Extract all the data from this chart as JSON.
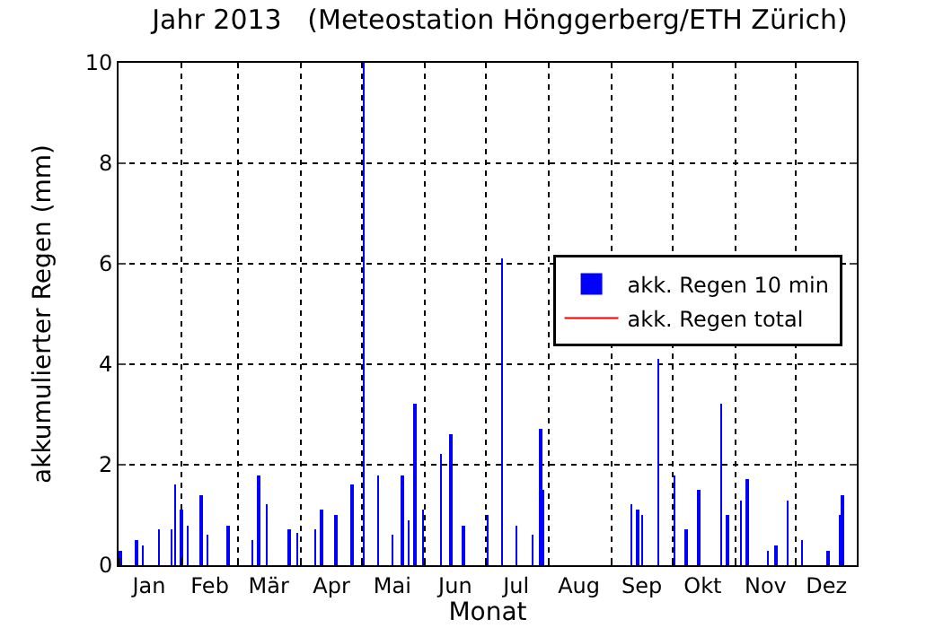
{
  "chart_data": {
    "type": "bar",
    "title": "Jahr 2013   (Meteostation Hönggerberg/ETH Zürich)",
    "xlabel": "Monat",
    "ylabel": "akkumulierter Regen (mm)",
    "series": [
      {
        "name": "akk. Regen 10 min",
        "color": "#0000ff",
        "x": [
          "2013-01-02",
          "2013-01-10",
          "2013-01-13",
          "2013-01-21",
          "2013-01-27",
          "2013-01-29",
          "2013-02-01",
          "2013-02-04",
          "2013-02-11",
          "2013-02-14",
          "2013-02-24",
          "2013-03-08",
          "2013-03-11",
          "2013-03-15",
          "2013-03-26",
          "2013-03-30",
          "2013-04-08",
          "2013-04-11",
          "2013-04-18",
          "2013-04-26",
          "2013-05-02",
          "2013-05-09",
          "2013-05-16",
          "2013-05-21",
          "2013-05-24",
          "2013-05-27",
          "2013-05-31",
          "2013-06-09",
          "2013-06-14",
          "2013-06-20",
          "2013-07-02",
          "2013-07-09",
          "2013-07-16",
          "2013-07-24",
          "2013-07-28",
          "2013-07-29",
          "2013-09-11",
          "2013-09-14",
          "2013-09-16",
          "2013-09-24",
          "2013-10-02",
          "2013-10-08",
          "2013-10-14",
          "2013-10-25",
          "2013-10-28",
          "2013-11-04",
          "2013-11-07",
          "2013-11-17",
          "2013-11-21",
          "2013-11-27",
          "2013-12-04",
          "2013-12-17",
          "2013-12-23",
          "2013-12-24"
        ],
        "values": [
          0.3,
          0.5,
          0.4,
          0.7,
          0.7,
          1.6,
          1.1,
          0.8,
          1.4,
          0.6,
          0.8,
          0.5,
          1.8,
          1.2,
          0.7,
          0.65,
          0.7,
          1.1,
          1.0,
          1.6,
          10,
          1.8,
          0.6,
          1.8,
          0.9,
          3.2,
          1.1,
          2.2,
          2.6,
          0.8,
          1.0,
          6.1,
          0.8,
          0.6,
          2.7,
          1.5,
          1.2,
          1.1,
          1.0,
          4.1,
          1.8,
          0.7,
          1.5,
          3.2,
          1.0,
          1.3,
          1.7,
          0.3,
          0.4,
          1.3,
          0.5,
          0.3,
          1.0,
          1.4
        ]
      },
      {
        "name": "akk. Regen total",
        "type": "line",
        "color": "#ff0000"
      }
    ],
    "xlim": [
      "2013-01-01",
      "2013-12-31"
    ],
    "xticks": [
      {
        "value": "2013-01-01",
        "label": null
      },
      {
        "value": "2013-01-16",
        "label": "Jan"
      },
      {
        "value": "2013-02-01",
        "label": null
      },
      {
        "value": "2013-02-15",
        "label": "Feb"
      },
      {
        "value": "2013-03-01",
        "label": null
      },
      {
        "value": "2013-03-16",
        "label": "Mär"
      },
      {
        "value": "2013-04-01",
        "label": null
      },
      {
        "value": "2013-04-16",
        "label": "Apr"
      },
      {
        "value": "2013-05-01",
        "label": null
      },
      {
        "value": "2013-05-16",
        "label": "Mai"
      },
      {
        "value": "2013-06-01",
        "label": null
      },
      {
        "value": "2013-06-16",
        "label": "Jun"
      },
      {
        "value": "2013-07-01",
        "label": null
      },
      {
        "value": "2013-07-16",
        "label": "Jul"
      },
      {
        "value": "2013-08-01",
        "label": null
      },
      {
        "value": "2013-08-16",
        "label": "Aug"
      },
      {
        "value": "2013-09-01",
        "label": null
      },
      {
        "value": "2013-09-16",
        "label": "Sep"
      },
      {
        "value": "2013-10-01",
        "label": null
      },
      {
        "value": "2013-10-16",
        "label": "Okt"
      },
      {
        "value": "2013-11-01",
        "label": null
      },
      {
        "value": "2013-11-16",
        "label": "Nov"
      },
      {
        "value": "2013-12-01",
        "label": null
      },
      {
        "value": "2013-12-16",
        "label": "Dez"
      }
    ],
    "ylim": [
      0,
      10
    ],
    "yticks": [
      0,
      2,
      4,
      6,
      8,
      10
    ],
    "grid": true,
    "legend": "right"
  }
}
